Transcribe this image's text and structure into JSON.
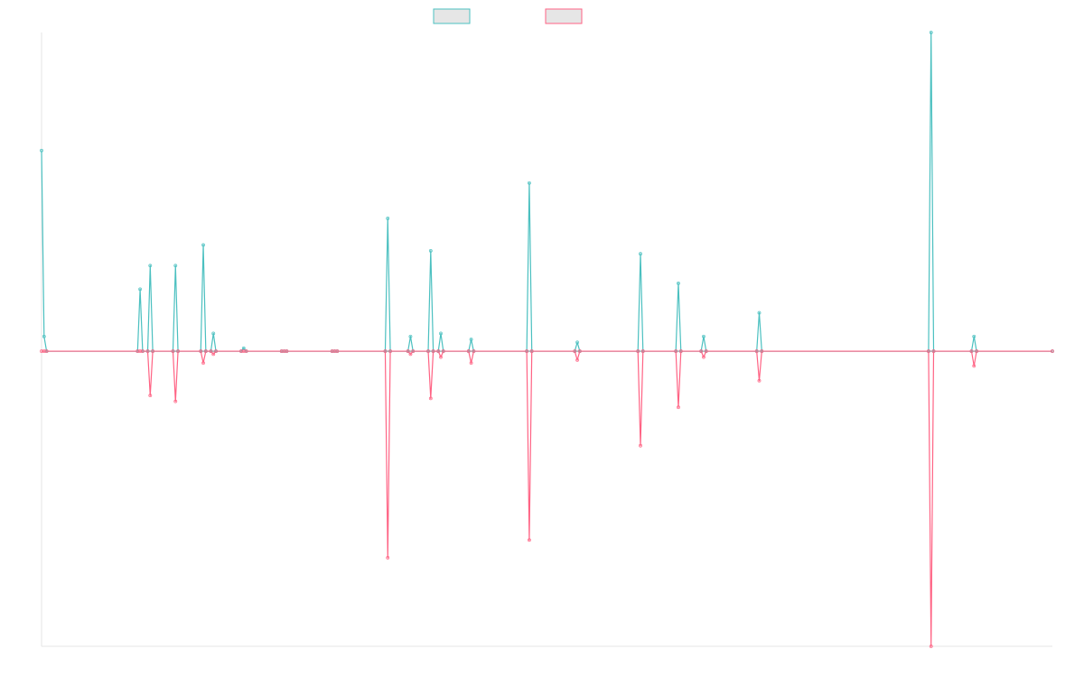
{
  "chart_data": {
    "type": "line",
    "title": "",
    "xlabel": "",
    "ylabel": "",
    "grid": false,
    "legend_position": "top-center",
    "x_range": [
      0,
      200
    ],
    "ylim": [
      -1,
      1.08
    ],
    "x": [
      0,
      0.5,
      1,
      19,
      19.5,
      20,
      21,
      21.5,
      22,
      26,
      26.5,
      27,
      31.5,
      32,
      32.5,
      33.5,
      34,
      34.5,
      39.5,
      40,
      40.5,
      47.5,
      48,
      48.5,
      57.5,
      58,
      58.5,
      68,
      68.5,
      69,
      72.5,
      73,
      73.5,
      76.5,
      77,
      77.5,
      78.5,
      79,
      79.5,
      84.5,
      85,
      85.5,
      96,
      96.5,
      97,
      105.5,
      106,
      106.5,
      118,
      118.5,
      119,
      125.5,
      126,
      126.5,
      130.5,
      131,
      131.5,
      141.5,
      142,
      142.5,
      175.5,
      176,
      176.5,
      184,
      184.5,
      185,
      200
    ],
    "series": [
      {
        "color": "#4bc0c0",
        "values": [
          0.68,
          0.05,
          0,
          0,
          0.21,
          0,
          0,
          0.29,
          0,
          0,
          0.29,
          0,
          0,
          0.36,
          0,
          0,
          0.06,
          0,
          0,
          0.01,
          0,
          0,
          0,
          0,
          0,
          0,
          0,
          0,
          0.45,
          0,
          0,
          0.05,
          0,
          0,
          0.34,
          0,
          0,
          0.06,
          0,
          0,
          0.04,
          0,
          0,
          0.57,
          0,
          0,
          0.03,
          0,
          0,
          0.33,
          0,
          0,
          0.23,
          0,
          0,
          0.05,
          0,
          0,
          0.13,
          0,
          0,
          1.08,
          0,
          0,
          0.05,
          0,
          0
        ]
      },
      {
        "color": "#ff6384",
        "values": [
          0,
          0,
          0,
          0,
          0,
          0,
          0,
          -0.15,
          0,
          0,
          -0.17,
          0,
          0,
          -0.04,
          0,
          0,
          -0.01,
          0,
          0,
          0,
          0,
          0,
          0,
          0,
          0,
          0,
          0,
          0,
          -0.7,
          0,
          0,
          -0.01,
          0,
          0,
          -0.16,
          0,
          0,
          -0.02,
          0,
          0,
          -0.04,
          0,
          0,
          -0.64,
          0,
          0,
          -0.03,
          0,
          0,
          -0.32,
          0,
          0,
          -0.19,
          0,
          0,
          -0.02,
          0,
          0,
          -0.1,
          0,
          0,
          -1,
          0,
          0,
          -0.05,
          0,
          0
        ]
      }
    ]
  }
}
